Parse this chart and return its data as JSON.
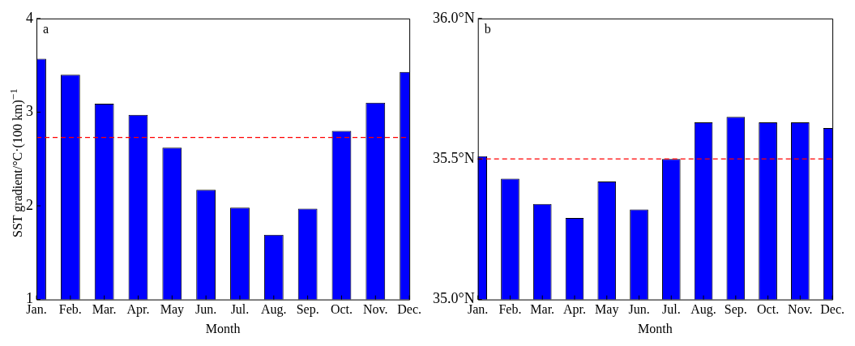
{
  "chart_data": [
    {
      "type": "bar",
      "annotations": [
        "a"
      ],
      "xlabel": "Month",
      "ylabel": "SST gradient/°C·(100 km)$^{−1}$",
      "categories": [
        "Jan.",
        "Feb.",
        "Mar.",
        "Apr.",
        "May",
        "Jun.",
        "Jul.",
        "Aug.",
        "Sep.",
        "Oct.",
        "Nov.",
        "Dec."
      ],
      "values": [
        3.57,
        3.4,
        3.09,
        2.97,
        2.62,
        2.17,
        1.98,
        1.69,
        1.97,
        2.8,
        3.1,
        3.43
      ],
      "color": "#0000ff",
      "ylim": [
        1,
        4
      ],
      "yticks": [
        1,
        2,
        3,
        4
      ],
      "grid": false,
      "legend": false,
      "ref_lines": [
        {
          "axis": "y",
          "value": 2.73,
          "color": "#ff0000",
          "line_style": "dashed"
        }
      ]
    },
    {
      "type": "bar",
      "annotations": [
        "b"
      ],
      "xlabel": "Month",
      "categories": [
        "Jan.",
        "Feb.",
        "Mar.",
        "Apr.",
        "May",
        "Jun.",
        "Jul.",
        "Aug.",
        "Sep.",
        "Oct.",
        "Nov.",
        "Dec."
      ],
      "values": [
        35.51,
        35.43,
        35.34,
        35.29,
        35.42,
        35.32,
        35.5,
        35.63,
        35.65,
        35.63,
        35.63,
        35.61
      ],
      "color": "#0000ff",
      "ylim": [
        35.0,
        36.0
      ],
      "yticks": [
        {
          "value": 35.0,
          "label": "35.0°N"
        },
        {
          "value": 35.5,
          "label": "35.5°N"
        },
        {
          "value": 36.0,
          "label": "36.0°N"
        }
      ],
      "grid": false,
      "legend": false,
      "ref_lines": [
        {
          "axis": "y",
          "value": 35.5,
          "color": "#ff0000",
          "line_style": "dashed"
        }
      ]
    }
  ]
}
